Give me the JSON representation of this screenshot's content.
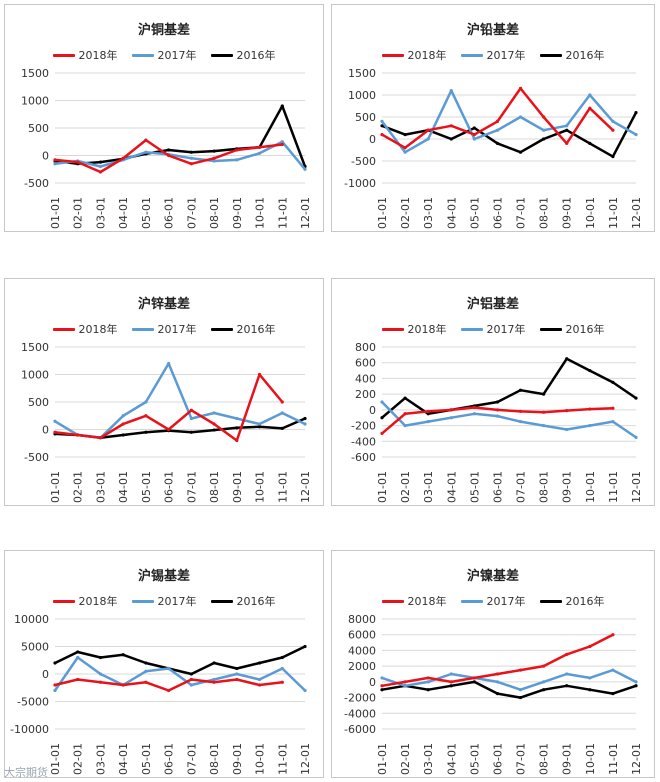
{
  "colors": {
    "2018年": "#e8131a",
    "2017年": "#5b9bd5",
    "2016年": "#000000"
  },
  "watermark": "大宗期货",
  "chart_data": [
    {
      "type": "line",
      "title": "沪铜基差",
      "categories": [
        "01-01",
        "02-01",
        "03-01",
        "04-01",
        "05-01",
        "06-01",
        "07-01",
        "08-01",
        "09-01",
        "10-01",
        "11-01",
        "12-01"
      ],
      "yticks": [
        -500,
        0,
        500,
        1000,
        1500
      ],
      "ylim": [
        -500,
        1500
      ],
      "series": [
        {
          "name": "2018年",
          "values": [
            -80,
            -120,
            -300,
            -50,
            280,
            0,
            -150,
            -50,
            100,
            150,
            200,
            null
          ]
        },
        {
          "name": "2017年",
          "values": [
            -150,
            -100,
            -200,
            -80,
            60,
            20,
            -50,
            -100,
            -80,
            40,
            250,
            -250
          ]
        },
        {
          "name": "2016年",
          "values": [
            -100,
            -150,
            -120,
            -60,
            30,
            100,
            60,
            80,
            120,
            150,
            900,
            -200
          ]
        }
      ]
    },
    {
      "type": "line",
      "title": "沪铅基差",
      "categories": [
        "01-01",
        "02-01",
        "03-01",
        "04-01",
        "05-01",
        "06-01",
        "07-01",
        "08-01",
        "09-01",
        "10-01",
        "11-01",
        "12-01"
      ],
      "yticks": [
        -1000,
        -500,
        0,
        500,
        1000,
        1500
      ],
      "ylim": [
        -1000,
        1500
      ],
      "series": [
        {
          "name": "2018年",
          "values": [
            100,
            -200,
            200,
            300,
            100,
            400,
            1150,
            500,
            -100,
            700,
            200,
            null
          ]
        },
        {
          "name": "2017年",
          "values": [
            400,
            -300,
            0,
            1100,
            0,
            200,
            500,
            200,
            300,
            1000,
            400,
            100
          ]
        },
        {
          "name": "2016年",
          "values": [
            300,
            100,
            200,
            0,
            250,
            -100,
            -300,
            0,
            200,
            -100,
            -400,
            600
          ]
        }
      ]
    },
    {
      "type": "line",
      "title": "沪锌基差",
      "categories": [
        "01-01",
        "02-01",
        "03-01",
        "04-01",
        "05-01",
        "06-01",
        "07-01",
        "08-01",
        "09-01",
        "10-01",
        "11-01",
        "12-01"
      ],
      "yticks": [
        -500,
        0,
        500,
        1000,
        1500
      ],
      "ylim": [
        -500,
        1500
      ],
      "series": [
        {
          "name": "2018年",
          "values": [
            -50,
            -100,
            -150,
            100,
            250,
            0,
            350,
            100,
            -200,
            1000,
            500,
            null
          ]
        },
        {
          "name": "2017年",
          "values": [
            150,
            -100,
            -150,
            250,
            500,
            1200,
            200,
            300,
            200,
            100,
            300,
            100
          ]
        },
        {
          "name": "2016年",
          "values": [
            -80,
            -100,
            -150,
            -100,
            -50,
            -20,
            -50,
            -10,
            30,
            50,
            20,
            200
          ]
        }
      ]
    },
    {
      "type": "line",
      "title": "沪铝基差",
      "categories": [
        "01-01",
        "02-01",
        "03-01",
        "04-01",
        "05-01",
        "06-01",
        "07-01",
        "08-01",
        "09-01",
        "10-01",
        "11-01",
        "12-01"
      ],
      "yticks": [
        -600,
        -400,
        -200,
        0,
        200,
        400,
        600,
        800
      ],
      "ylim": [
        -600,
        800
      ],
      "series": [
        {
          "name": "2018年",
          "values": [
            -300,
            -50,
            -20,
            0,
            30,
            0,
            -20,
            -30,
            -10,
            10,
            20,
            null
          ]
        },
        {
          "name": "2017年",
          "values": [
            100,
            -200,
            -150,
            -100,
            -50,
            -80,
            -150,
            -200,
            -250,
            -200,
            -150,
            -350
          ]
        },
        {
          "name": "2016年",
          "values": [
            -100,
            150,
            -50,
            0,
            50,
            100,
            250,
            200,
            650,
            500,
            350,
            150
          ]
        }
      ]
    },
    {
      "type": "line",
      "title": "沪锡基差",
      "categories": [
        "01-01",
        "02-01",
        "03-01",
        "04-01",
        "05-01",
        "06-01",
        "07-01",
        "08-01",
        "09-01",
        "10-01",
        "11-01",
        "12-01"
      ],
      "yticks": [
        -10000,
        -5000,
        0,
        5000,
        10000
      ],
      "ylim": [
        -10000,
        10000
      ],
      "series": [
        {
          "name": "2018年",
          "values": [
            -2000,
            -1000,
            -1500,
            -2000,
            -1500,
            -3000,
            -1000,
            -1500,
            -1000,
            -2000,
            -1500,
            null
          ]
        },
        {
          "name": "2017年",
          "values": [
            -3000,
            3000,
            0,
            -2000,
            500,
            1000,
            -2000,
            -1000,
            0,
            -1000,
            1000,
            -3000
          ]
        },
        {
          "name": "2016年",
          "values": [
            2000,
            4000,
            3000,
            3500,
            2000,
            1000,
            0,
            2000,
            1000,
            2000,
            3000,
            5000
          ]
        }
      ]
    },
    {
      "type": "line",
      "title": "沪镍基差",
      "categories": [
        "01-01",
        "02-01",
        "03-01",
        "04-01",
        "05-01",
        "06-01",
        "07-01",
        "08-01",
        "09-01",
        "10-01",
        "11-01",
        "12-01"
      ],
      "yticks": [
        -6000,
        -4000,
        -2000,
        0,
        2000,
        4000,
        6000,
        8000
      ],
      "ylim": [
        -6000,
        8000
      ],
      "series": [
        {
          "name": "2018年",
          "values": [
            -500,
            0,
            500,
            0,
            500,
            1000,
            1500,
            2000,
            3500,
            4500,
            6000,
            null
          ]
        },
        {
          "name": "2017年",
          "values": [
            500,
            -500,
            0,
            1000,
            500,
            0,
            -1000,
            0,
            1000,
            500,
            1500,
            0
          ]
        },
        {
          "name": "2016年",
          "values": [
            -1000,
            -500,
            -1000,
            -500,
            0,
            -1500,
            -2000,
            -1000,
            -500,
            -1000,
            -1500,
            -500
          ]
        }
      ]
    }
  ]
}
